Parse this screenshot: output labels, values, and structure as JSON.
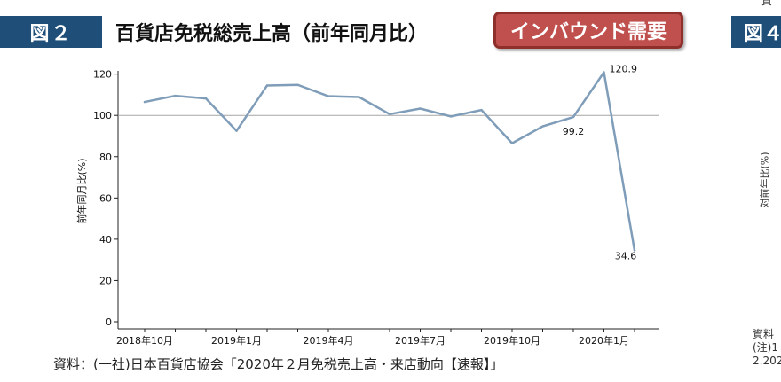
{
  "header": {
    "figure_number": "図２",
    "title": "百貨店免税総売上高（前年同月比）",
    "badge": "インバウンド需要",
    "next_figure_number": "図４"
  },
  "source": "資料：(一社)日本百貨店協会「2020年２月免税売上高・来店動向【速報】」",
  "next_panel": {
    "top_fragment": "質",
    "ylabel": "対前年比(%)",
    "notes": [
      "資料",
      "(注)1",
      "2.202"
    ]
  },
  "chart_data": {
    "type": "line",
    "title": "",
    "xlabel": "",
    "ylabel": "前年同月比(%)",
    "ylim": [
      0,
      125
    ],
    "yticks": [
      0,
      20,
      40,
      60,
      80,
      100,
      120
    ],
    "reference_line": 100,
    "x": [
      "2018-10",
      "2018-11",
      "2018-12",
      "2019-01",
      "2019-02",
      "2019-03",
      "2019-04",
      "2019-05",
      "2019-06",
      "2019-07",
      "2019-08",
      "2019-09",
      "2019-10",
      "2019-11",
      "2019-12",
      "2020-01",
      "2020-02"
    ],
    "xtick_labels": [
      {
        "at": "2018-10",
        "label": "2018年10月"
      },
      {
        "at": "2019-01",
        "label": "2019年1月"
      },
      {
        "at": "2019-04",
        "label": "2019年4月"
      },
      {
        "at": "2019-07",
        "label": "2019年7月"
      },
      {
        "at": "2019-10",
        "label": "2019年10月"
      },
      {
        "at": "2020-01",
        "label": "2020年1月"
      }
    ],
    "series": [
      {
        "values": [
          106.5,
          109.5,
          108.2,
          92.5,
          114.5,
          114.8,
          109.3,
          108.9,
          100.6,
          103.3,
          99.5,
          102.6,
          86.5,
          94.7,
          99.2,
          120.9,
          34.6
        ],
        "color": "#7f9db9"
      }
    ],
    "data_labels": [
      {
        "at": "2019-12",
        "text": "99.2"
      },
      {
        "at": "2020-01",
        "text": "120.9"
      },
      {
        "at": "2020-02",
        "text": "34.6"
      }
    ],
    "grid": false,
    "legend": "none"
  }
}
